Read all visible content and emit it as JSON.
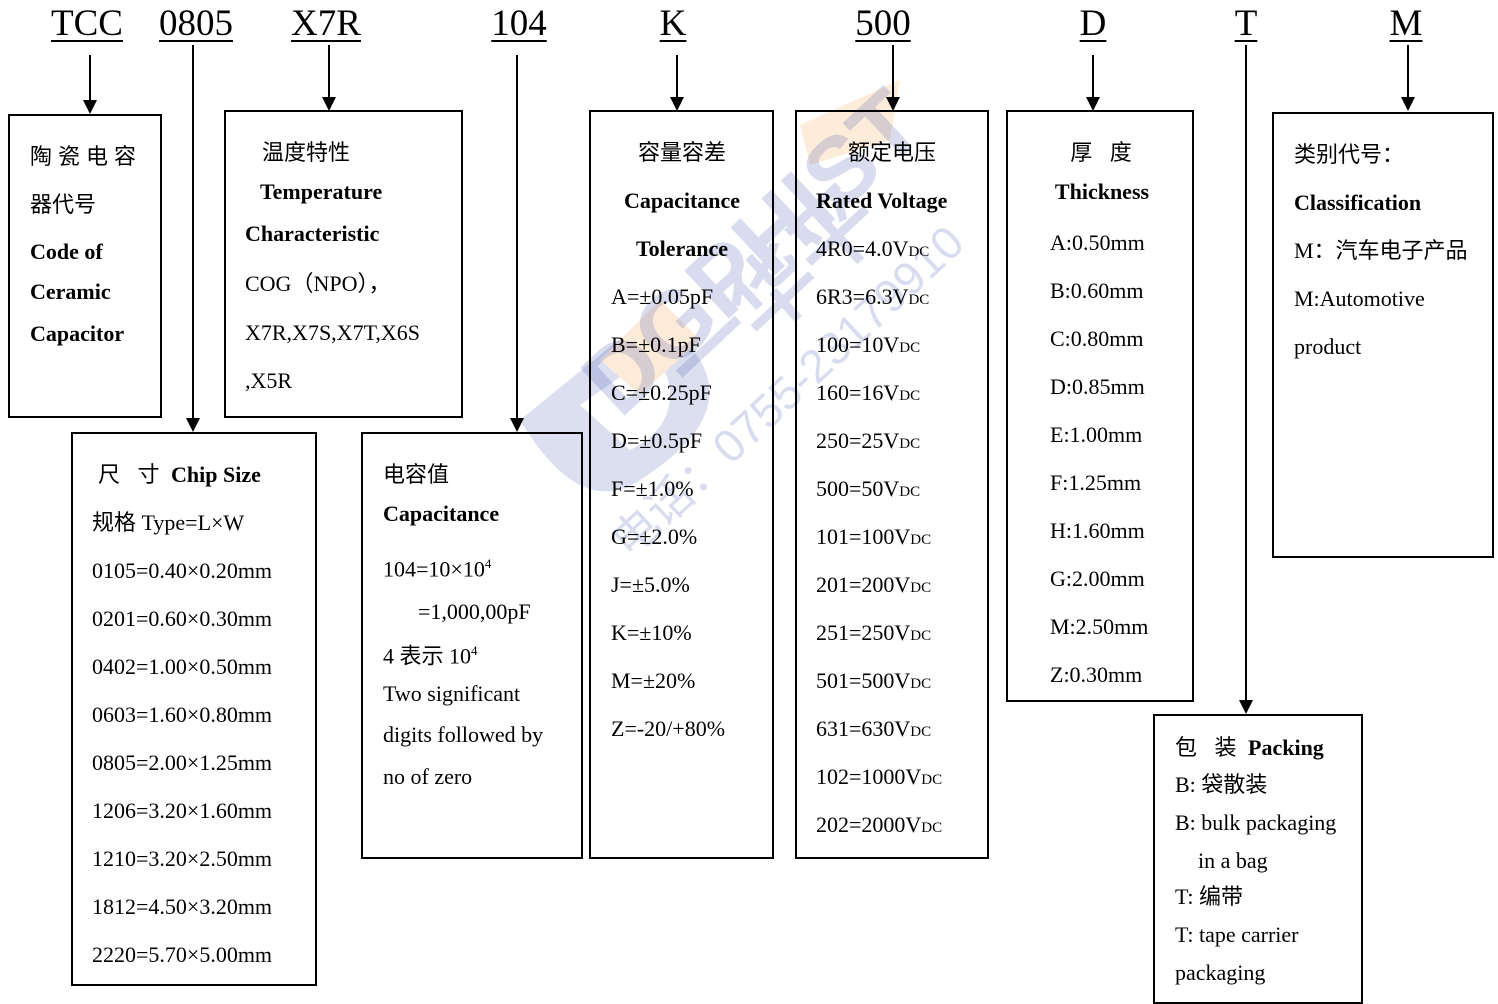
{
  "codes": {
    "c1": "TCC",
    "c2": "0805",
    "c3": "X7R",
    "c4": "104",
    "c5": "K",
    "c6": "500",
    "c7": "D",
    "c8": "T",
    "c9": "M"
  },
  "ceramic": {
    "l1": "陶瓷电容",
    "l2": "器代号",
    "l3": "Code of",
    "l4": "Ceramic",
    "l5": "Capacitor"
  },
  "temperature": {
    "zh": "温度特性",
    "en1": "Temperature",
    "en2": "Characteristic",
    "v1": "COG（NPO），",
    "v2": "X7R,X7S,X7T,X6S",
    "v3": ",X5R"
  },
  "chip_size": {
    "zh": "尺 寸",
    "en": "Chip Size",
    "type": "规格  Type=L×W",
    "items": [
      "0105=0.40×0.20mm",
      "0201=0.60×0.30mm",
      "0402=1.00×0.50mm",
      "0603=1.60×0.80mm",
      "0805=2.00×1.25mm",
      "1206=3.20×1.60mm",
      "1210=3.20×2.50mm",
      "1812=4.50×3.20mm",
      "2220=5.70×5.00mm"
    ]
  },
  "capacitance": {
    "zh": "电容值",
    "en": "Capacitance",
    "ex1": "104=10×10",
    "ex1_exp": "4",
    "ex2": "=1,000,00pF",
    "ex3": "4 表示 10",
    "ex3_exp": "4",
    "d1": "Two significant",
    "d2": "digits followed by",
    "d3": "no of zero"
  },
  "tolerance": {
    "zh": "容量容差",
    "en1": "Capacitance",
    "en2": "Tolerance",
    "items": [
      "A=±0.05pF",
      "B=±0.1pF",
      "C=±0.25pF",
      "D=±0.5pF",
      "F=±1.0%",
      "G=±2.0%",
      "J=±5.0%",
      "K=±10%",
      "M=±20%",
      "Z=-20/+80%"
    ]
  },
  "voltage": {
    "zh": "额定电压",
    "en": "Rated Voltage",
    "unit": "DC",
    "items": [
      "4R0=4.0V",
      "6R3=6.3V",
      "100=10V",
      "160=16V",
      "250=25V",
      "500=50V",
      "101=100V",
      "201=200V",
      "251=250V",
      "501=500V",
      "631=630V",
      "102=1000V",
      "202=2000V"
    ]
  },
  "thickness": {
    "zh": "厚 度",
    "en": "Thickness",
    "items": [
      "A:0.50mm",
      "B:0.60mm",
      "C:0.80mm",
      "D:0.85mm",
      "E:1.00mm",
      "F:1.25mm",
      "H:1.60mm",
      "G:2.00mm",
      "M:2.50mm",
      "Z:0.30mm"
    ]
  },
  "classification": {
    "zh": "类别代号：",
    "en": "Classification",
    "m1": "M：汽车电子产品",
    "m2": "M:Automotive",
    "m3": "product"
  },
  "packing": {
    "zh": "包 装",
    "en": "Packing",
    "l1": "B:  袋散装",
    "l2": "B: bulk packaging",
    "l3": "in a bag",
    "l4": "T:  编带",
    "l5": "T: tape carrier",
    "l6": "packaging"
  },
  "watermark": {
    "brand": "DGPHIST",
    "zh": "一华平",
    "phone": "电话：0755-23179910"
  },
  "colors": {
    "line": "#000000",
    "watermark_blue": "#3345a8",
    "watermark_orange": "#f28c1e"
  }
}
